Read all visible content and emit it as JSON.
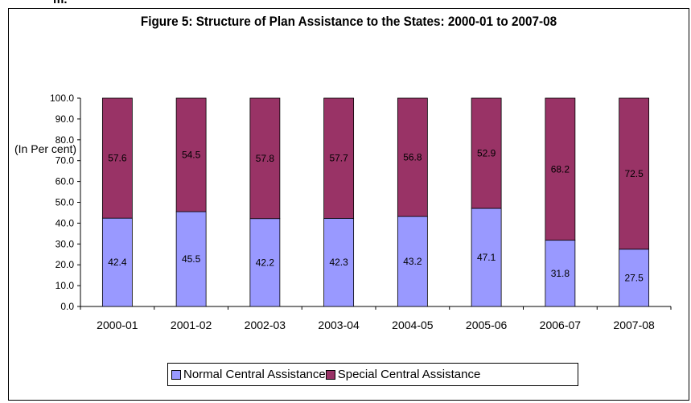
{
  "header_fragment": "m.",
  "chart_data": {
    "type": "bar",
    "stacked": true,
    "title": "Figure 5: Structure of Plan Assistance to the States: 2000-01 to 2007-08",
    "ylabel": "(In Per cent)",
    "xlabel": "",
    "ylim": [
      0,
      100
    ],
    "ytick_step": 10,
    "ytick_labels": [
      "0.0",
      "10.0",
      "20.0",
      "30.0",
      "40.0",
      "50.0",
      "60.0",
      "70.0",
      "80.0",
      "90.0",
      "100.0"
    ],
    "categories": [
      "2000-01",
      "2001-02",
      "2002-03",
      "2003-04",
      "2004-05",
      "2005-06",
      "2006-07",
      "2007-08"
    ],
    "series": [
      {
        "name": "Normal Central Assistance",
        "color": "#9999ff",
        "values": [
          42.4,
          45.5,
          42.2,
          42.3,
          43.2,
          47.1,
          31.8,
          27.5
        ],
        "labels": [
          "42.4",
          "45.5",
          "42.2",
          "42.3",
          "43.2",
          "47.1",
          "31.8",
          "27.5"
        ]
      },
      {
        "name": "Special Central Assistance",
        "color": "#993366",
        "values": [
          57.6,
          54.5,
          57.8,
          57.7,
          56.8,
          52.9,
          68.2,
          72.5
        ],
        "labels": [
          "57.6",
          "54.5",
          "57.8",
          "57.7",
          "56.8",
          "52.9",
          "68.2",
          "72.5"
        ]
      }
    ],
    "grid": false,
    "legend_position": "bottom"
  }
}
